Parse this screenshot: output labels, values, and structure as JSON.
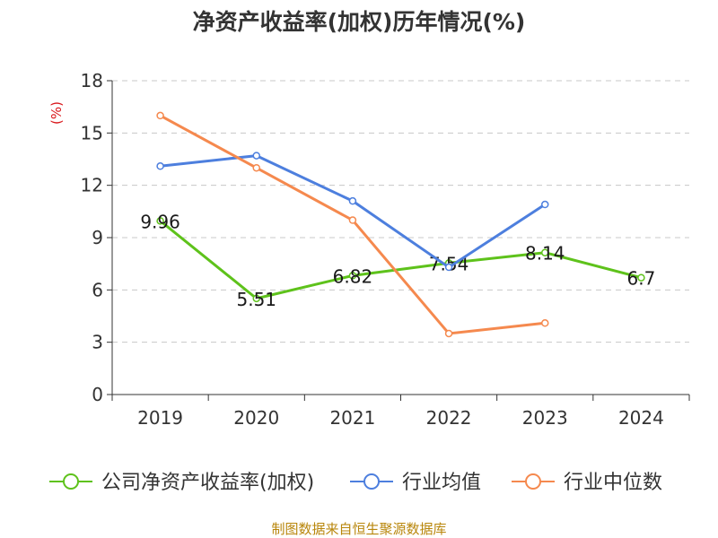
{
  "colors": {
    "background": "#ffffff",
    "axis": "#333333",
    "grid": "#c8c8c8",
    "ylabel": "#d9161a",
    "footer": "#b8860b"
  },
  "chart_data": {
    "type": "line",
    "title": "净资产收益率(加权)历年情况(%)",
    "ylabel": "(%)",
    "xlabel": "",
    "categories": [
      "2019",
      "2020",
      "2021",
      "2022",
      "2023",
      "2024"
    ],
    "ylim": [
      0,
      18
    ],
    "yticks": [
      0,
      3,
      6,
      9,
      12,
      15,
      18
    ],
    "grid": true,
    "legend_position": "bottom",
    "series": [
      {
        "name": "公司净资产收益率(加权)",
        "color": "#5ec21b",
        "values": [
          9.96,
          5.51,
          6.82,
          7.54,
          8.14,
          6.7
        ],
        "labels": [
          "9.96",
          "5.51",
          "6.82",
          "7.54",
          "8.14",
          "6.7"
        ]
      },
      {
        "name": "行业均值",
        "color": "#4d7fde",
        "values": [
          13.1,
          13.7,
          11.1,
          7.3,
          10.9,
          null
        ]
      },
      {
        "name": "行业中位数",
        "color": "#f5894e",
        "values": [
          16.0,
          13.0,
          10.0,
          3.5,
          4.1,
          null
        ]
      }
    ]
  },
  "footer": {
    "source": "制图数据来自恒生聚源数据库"
  }
}
